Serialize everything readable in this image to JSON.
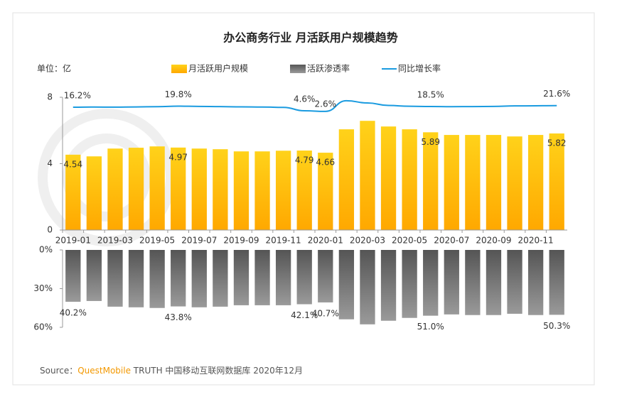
{
  "chart_data": [
    {
      "type": "bar",
      "title": "办公商务行业 月活跃用户规模趋势",
      "unit_label": "单位：亿",
      "categories": [
        "2019-01",
        null,
        "2019-03",
        null,
        "2019-05",
        null,
        "2019-07",
        null,
        "2019-09",
        null,
        "2019-11",
        null,
        "2020-01",
        null,
        "2020-03",
        null,
        "2020-05",
        null,
        "2020-07",
        null,
        "2020-09",
        null,
        "2020-11",
        null
      ],
      "series": [
        {
          "name": "月活跃用户规模",
          "color": "#ffb400",
          "values": [
            4.54,
            4.44,
            4.91,
            4.96,
            5.04,
            4.97,
            4.91,
            4.87,
            4.74,
            4.74,
            4.78,
            4.79,
            4.66,
            6.07,
            6.58,
            6.24,
            6.07,
            5.89,
            5.73,
            5.73,
            5.73,
            5.64,
            5.73,
            5.82
          ],
          "value_labels": [
            "4.54",
            null,
            null,
            null,
            null,
            "4.97",
            null,
            null,
            null,
            null,
            null,
            "4.79",
            "4.66",
            null,
            null,
            null,
            null,
            "5.89",
            null,
            null,
            null,
            null,
            null,
            "5.82"
          ]
        },
        {
          "name": "同比增长率",
          "type": "line",
          "color": "#1a9be0",
          "values": [
            16.2,
            16.8,
            16.5,
            17.2,
            18.0,
            19.8,
            18.9,
            18.2,
            17.5,
            17.0,
            15.8,
            4.6,
            2.6,
            37.5,
            30.2,
            22.0,
            19.5,
            18.5,
            18.0,
            18.4,
            18.8,
            20.5,
            21.0,
            21.6
          ],
          "value_labels": [
            "16.2%",
            null,
            null,
            null,
            null,
            "19.8%",
            null,
            null,
            null,
            null,
            null,
            "4.6%",
            "2.6%",
            null,
            null,
            null,
            null,
            "18.5%",
            null,
            null,
            null,
            null,
            null,
            "21.6%"
          ]
        }
      ],
      "ylim": [
        0,
        8
      ],
      "yticks": [
        0,
        4,
        8
      ]
    },
    {
      "type": "bar",
      "direction": "down",
      "series": [
        {
          "name": "活跃渗透率",
          "color": "#808080",
          "values": [
            40.2,
            39.6,
            44.0,
            44.5,
            45.0,
            43.8,
            44.5,
            44.0,
            42.9,
            42.9,
            42.9,
            42.1,
            40.7,
            53.8,
            57.7,
            54.9,
            52.7,
            51.0,
            50.0,
            50.5,
            50.5,
            49.5,
            50.5,
            50.3
          ],
          "value_labels": [
            "40.2%",
            null,
            null,
            null,
            null,
            "43.8%",
            null,
            null,
            null,
            null,
            null,
            "42.1%",
            "40.7%",
            null,
            null,
            null,
            null,
            "51.0%",
            null,
            null,
            null,
            null,
            null,
            "50.3%"
          ]
        }
      ],
      "ylim": [
        0,
        60
      ],
      "yticks": [
        {
          "value": 0,
          "label": "0%"
        },
        {
          "value": 30,
          "label": "30%"
        },
        {
          "value": 60,
          "label": "60%"
        }
      ]
    }
  ],
  "source": {
    "prefix": "Source：",
    "brand": "QuestMobile",
    "suffix": " TRUTH 中国移动互联网数据库 2020年12月"
  }
}
